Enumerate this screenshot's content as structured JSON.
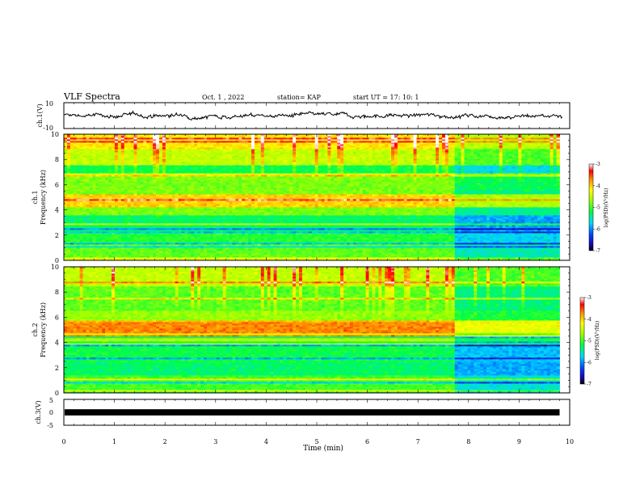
{
  "header": {
    "title": "VLF Spectra",
    "date": "Oct. 1 , 2022",
    "station": "station= KAP",
    "start": "start UT =   17: 10: 1"
  },
  "chart_data": [
    {
      "type": "line",
      "panel": "ch1-waveform",
      "ylabel": "ch.1(V)",
      "ylim": [
        -10,
        10
      ],
      "yticks": [
        "10",
        "-10"
      ],
      "xlim": [
        0,
        10
      ],
      "description_level": "noise around 0 V, amplitude about ±5 V",
      "approx_mean": 0,
      "approx_amplitude": 5,
      "color": "#000000"
    },
    {
      "type": "heatmap",
      "panel": "ch1-spectrogram",
      "ylabel": "ch.1\nFrequency (kHz)",
      "ylabel_lines": [
        "ch.1",
        "Frequency (kHz)"
      ],
      "ylim": [
        0,
        10
      ],
      "yticks": [
        "0",
        "2",
        "4",
        "6",
        "8",
        "10"
      ],
      "xlim": [
        0,
        10
      ],
      "data_end_min": 9.8,
      "regime_change_min": 7.7,
      "colorbar": {
        "label": "log(PSD)(V²/Hz)",
        "range": [
          -7,
          -3
        ],
        "ticks": [
          "-3",
          "-4",
          "-5",
          "-6",
          "-7"
        ]
      },
      "bands_kHz": [
        {
          "lo": 0.0,
          "hi": 0.3,
          "level": -4.3
        },
        {
          "lo": 0.3,
          "hi": 1.3,
          "level": -4.9
        },
        {
          "lo": 1.3,
          "hi": 2.3,
          "level": -5.1
        },
        {
          "lo": 2.3,
          "hi": 3.6,
          "level": -5.3
        },
        {
          "lo": 3.6,
          "hi": 4.3,
          "level": -4.8
        },
        {
          "lo": 4.3,
          "hi": 5.3,
          "level": -4.0
        },
        {
          "lo": 5.3,
          "hi": 6.8,
          "level": -4.8
        },
        {
          "lo": 6.8,
          "hi": 7.6,
          "level": -5.2
        },
        {
          "lo": 7.6,
          "hi": 8.8,
          "level": -4.5
        },
        {
          "lo": 8.8,
          "hi": 10.0,
          "level": -4.1
        }
      ]
    },
    {
      "type": "heatmap",
      "panel": "ch2-spectrogram",
      "ylabel": "ch.2\nFrequency (kHz)",
      "ylabel_lines": [
        "ch.2",
        "Frequency (kHz)"
      ],
      "ylim": [
        0,
        10
      ],
      "yticks": [
        "0",
        "2",
        "4",
        "6",
        "8",
        "10"
      ],
      "xlim": [
        0,
        10
      ],
      "data_end_min": 9.8,
      "regime_change_min": 7.7,
      "colorbar": {
        "label": "log(PSD)(V²/Hz)",
        "range": [
          -7,
          -3
        ],
        "ticks": [
          "-3",
          "-4",
          "-5",
          "-6",
          "-7"
        ]
      },
      "bands_kHz": [
        {
          "lo": 0.0,
          "hi": 0.3,
          "level": -4.4
        },
        {
          "lo": 0.3,
          "hi": 1.4,
          "level": -5.0
        },
        {
          "lo": 1.4,
          "hi": 2.4,
          "level": -5.3
        },
        {
          "lo": 2.4,
          "hi": 3.8,
          "level": -5.2
        },
        {
          "lo": 3.8,
          "hi": 4.5,
          "level": -4.6
        },
        {
          "lo": 4.5,
          "hi": 5.7,
          "level": -3.7
        },
        {
          "lo": 5.7,
          "hi": 6.6,
          "level": -4.7
        },
        {
          "lo": 6.6,
          "hi": 8.4,
          "level": -4.9
        },
        {
          "lo": 8.4,
          "hi": 10.0,
          "level": -4.5
        }
      ]
    },
    {
      "type": "line",
      "panel": "ch3-waveform",
      "ylabel": "ch.3(V)",
      "ylim": [
        -5,
        5
      ],
      "yticks": [
        "5",
        "0",
        "-5"
      ],
      "xlim": [
        0,
        10
      ],
      "approx_mean": 0,
      "approx_amplitude": 0.6,
      "data_end_min": 9.8,
      "color": "#000000"
    }
  ],
  "xaxis": {
    "label": "Time (min)",
    "ticks": [
      "0",
      "1",
      "2",
      "3",
      "4",
      "5",
      "6",
      "7",
      "8",
      "9",
      "10"
    ]
  }
}
